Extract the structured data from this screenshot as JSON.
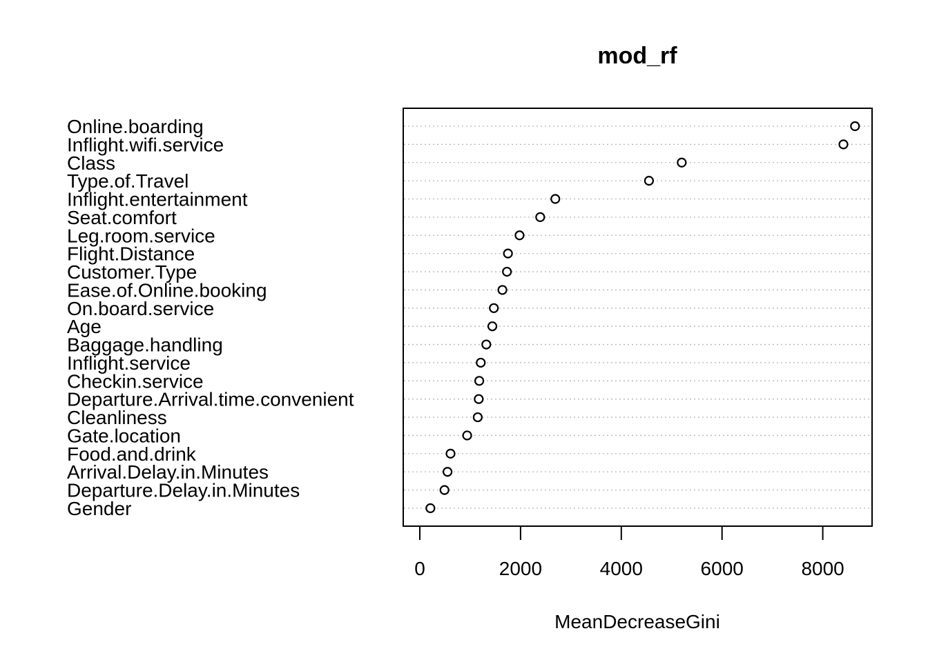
{
  "chart_data": {
    "type": "scatter",
    "title": "mod_rf",
    "xlabel": "MeanDecreaseGini",
    "ylabel": "",
    "xlim": [
      0,
      9000
    ],
    "xticks": [
      0,
      2000,
      4000,
      6000,
      8000
    ],
    "grid": "dotted horizontal lines per variable",
    "categories": [
      "Online.boarding",
      "Inflight.wifi.service",
      "Class",
      "Type.of.Travel",
      "Inflight.entertainment",
      "Seat.comfort",
      "Leg.room.service",
      "Flight.Distance",
      "Customer.Type",
      "Ease.of.Online.booking",
      "On.board.service",
      "Age",
      "Baggage.handling",
      "Inflight.service",
      "Checkin.service",
      "Departure.Arrival.time.convenient",
      "Cleanliness",
      "Gate.location",
      "Food.and.drink",
      "Arrival.Delay.in.Minutes",
      "Departure.Delay.in.Minutes",
      "Gender"
    ],
    "values": [
      8640,
      8410,
      5200,
      4550,
      2690,
      2390,
      1980,
      1750,
      1730,
      1640,
      1470,
      1440,
      1320,
      1210,
      1180,
      1170,
      1150,
      940,
      610,
      550,
      490,
      210
    ]
  }
}
